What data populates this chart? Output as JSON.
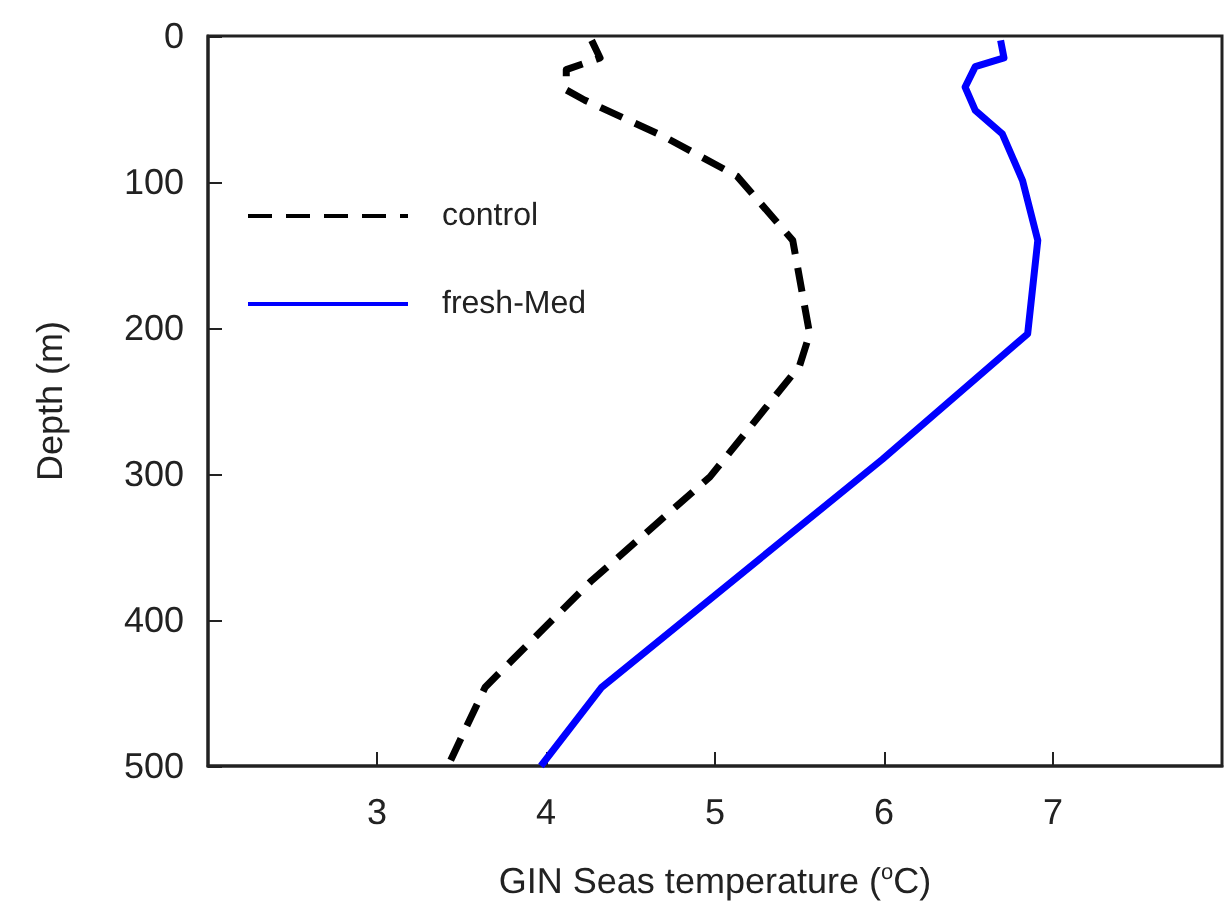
{
  "chart_data": {
    "type": "line",
    "xlabel": "GIN Seas temperature ($^{o}$C)",
    "ylabel": "Depth (m)",
    "xlim": [
      2,
      8
    ],
    "xticks": [
      3,
      4,
      5,
      6,
      7
    ],
    "ylim": [
      500,
      0
    ],
    "yticks": [
      0,
      100,
      200,
      300,
      400,
      500
    ],
    "grid": false,
    "legend": "top left",
    "marker": "none",
    "series": [
      {
        "name": "control",
        "color": "#000000",
        "line_style": "dashed",
        "x": [
          4.27,
          4.32,
          4.12,
          4.12,
          4.23,
          4.7,
          5.13,
          5.46,
          5.56,
          5.5,
          4.97,
          4.27,
          3.64,
          3.42
        ],
        "values": [
          3,
          15,
          23,
          37,
          44,
          69,
          96,
          140,
          204,
          226,
          302,
          373,
          446,
          500
        ]
      },
      {
        "name": "fresh-Med",
        "color": "#0000ff",
        "line_style": "solid",
        "x": [
          6.69,
          6.71,
          6.54,
          6.48,
          6.54,
          6.7,
          6.82,
          6.91,
          6.85,
          5.99,
          4.33,
          3.97
        ],
        "values": [
          3,
          15,
          21,
          35,
          51,
          67,
          99,
          140,
          204,
          290,
          446,
          500
        ]
      }
    ]
  }
}
